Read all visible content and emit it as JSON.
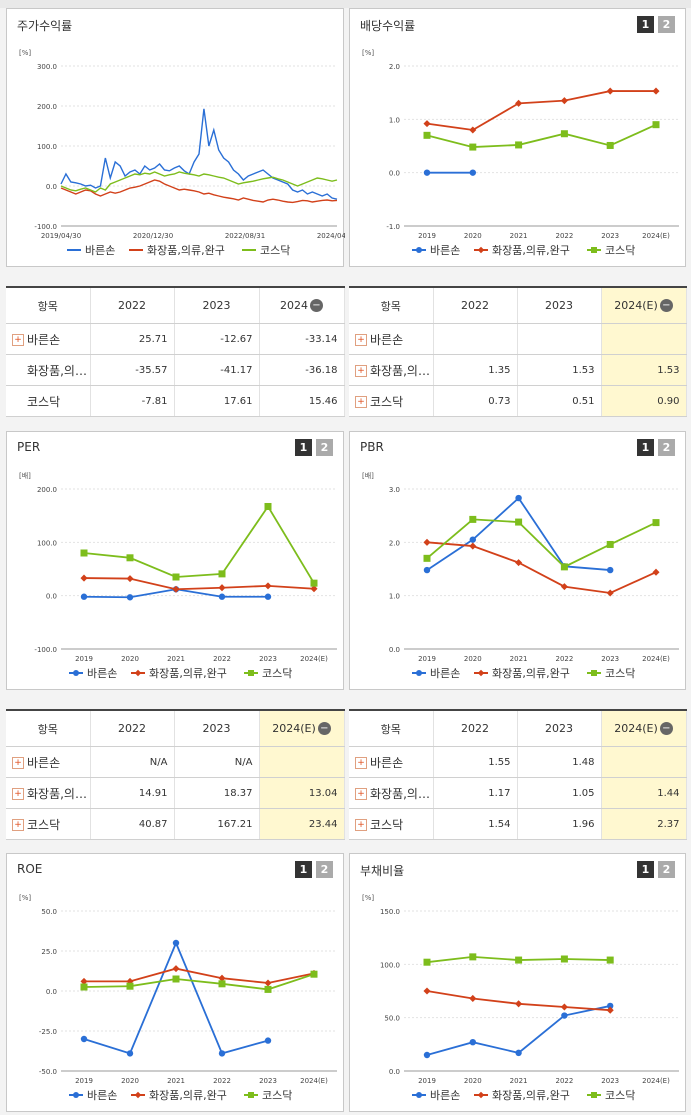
{
  "colors": {
    "bareunson": "#2a6fd6",
    "cosmetics": "#d2411a",
    "kosdaq": "#7dbd1c"
  },
  "legend": [
    "바른손",
    "화장품,의류,완구",
    "코스닥"
  ],
  "buttons": {
    "b1": "1",
    "b2": "2"
  },
  "panels": {
    "stock": {
      "title": "주가수익률"
    },
    "dividend": {
      "title": "배당수익률"
    },
    "per": {
      "title": "PER"
    },
    "pbr": {
      "title": "PBR"
    },
    "roe": {
      "title": "ROE"
    },
    "debt": {
      "title": "부채비율"
    }
  },
  "tables": {
    "stock": {
      "head": [
        "항목",
        "2022",
        "2023",
        "2024"
      ],
      "rows": [
        {
          "name": "바른손",
          "plus": true,
          "v": [
            "25.71",
            "-12.67",
            "-33.14"
          ]
        },
        {
          "name": "화장품,의…",
          "plus": false,
          "v": [
            "-35.57",
            "-41.17",
            "-36.18"
          ]
        },
        {
          "name": "코스닥",
          "plus": false,
          "v": [
            "-7.81",
            "17.61",
            "15.46"
          ]
        }
      ]
    },
    "dividend": {
      "head": [
        "항목",
        "2022",
        "2023",
        "2024(E)"
      ],
      "rows": [
        {
          "name": "바른손",
          "plus": true,
          "v": [
            "",
            "",
            ""
          ]
        },
        {
          "name": "화장품,의…",
          "plus": true,
          "v": [
            "1.35",
            "1.53",
            "1.53"
          ]
        },
        {
          "name": "코스닥",
          "plus": true,
          "v": [
            "0.73",
            "0.51",
            "0.90"
          ]
        }
      ]
    },
    "per": {
      "head": [
        "항목",
        "2022",
        "2023",
        "2024(E)"
      ],
      "rows": [
        {
          "name": "바른손",
          "plus": true,
          "v": [
            "N/A",
            "N/A",
            ""
          ]
        },
        {
          "name": "화장품,의…",
          "plus": true,
          "v": [
            "14.91",
            "18.37",
            "13.04"
          ]
        },
        {
          "name": "코스닥",
          "plus": true,
          "v": [
            "40.87",
            "167.21",
            "23.44"
          ]
        }
      ]
    },
    "pbr": {
      "head": [
        "항목",
        "2022",
        "2023",
        "2024(E)"
      ],
      "rows": [
        {
          "name": "바른손",
          "plus": true,
          "v": [
            "1.55",
            "1.48",
            ""
          ]
        },
        {
          "name": "화장품,의…",
          "plus": true,
          "v": [
            "1.17",
            "1.05",
            "1.44"
          ]
        },
        {
          "name": "코스닥",
          "plus": true,
          "v": [
            "1.54",
            "1.96",
            "2.37"
          ]
        }
      ]
    }
  },
  "chart_data": [
    {
      "id": "stock",
      "type": "line",
      "ylabel": "[%]",
      "ylim": [
        -100,
        300
      ],
      "yticks": [
        "300.0",
        "200.0",
        "100.0",
        "0.0",
        "-100.0"
      ],
      "xticks": [
        "2019/04/30",
        "2020/12/30",
        "2022/08/31",
        "2024/04/30"
      ],
      "series": [
        {
          "name": "바른손",
          "values": [
            5,
            30,
            10,
            8,
            5,
            0,
            2,
            -5,
            0,
            70,
            20,
            60,
            50,
            25,
            35,
            40,
            30,
            50,
            40,
            45,
            55,
            40,
            38,
            45,
            50,
            38,
            30,
            60,
            80,
            193,
            100,
            140,
            90,
            70,
            60,
            40,
            30,
            15,
            25,
            30,
            35,
            40,
            30,
            20,
            15,
            10,
            5,
            -10,
            -15,
            -10,
            -20,
            -15,
            -20,
            -25,
            -20,
            -30,
            -33
          ]
        },
        {
          "name": "화장품,의류,완구",
          "values": [
            -5,
            -10,
            -15,
            -20,
            -15,
            -10,
            -12,
            -20,
            -25,
            -20,
            -15,
            -18,
            -15,
            -10,
            -5,
            -3,
            0,
            5,
            10,
            15,
            12,
            5,
            0,
            -5,
            -10,
            -8,
            -10,
            -12,
            -15,
            -20,
            -18,
            -22,
            -25,
            -28,
            -30,
            -32,
            -35,
            -30,
            -33,
            -36,
            -38,
            -40,
            -35,
            -33,
            -35,
            -38,
            -40,
            -41,
            -39,
            -36,
            -37,
            -40,
            -38,
            -36,
            -35,
            -37,
            -36
          ]
        },
        {
          "name": "코스닥",
          "values": [
            0,
            -5,
            -10,
            -12,
            -8,
            -5,
            -10,
            -15,
            -5,
            -10,
            5,
            10,
            15,
            20,
            25,
            30,
            28,
            32,
            30,
            35,
            30,
            25,
            28,
            30,
            35,
            32,
            30,
            28,
            25,
            30,
            28,
            25,
            22,
            20,
            15,
            10,
            5,
            8,
            10,
            12,
            15,
            18,
            20,
            22,
            18,
            15,
            10,
            5,
            0,
            5,
            10,
            15,
            20,
            18,
            15,
            12,
            15
          ]
        }
      ]
    },
    {
      "id": "dividend",
      "type": "line",
      "ylabel": "[%]",
      "ylim": [
        -1,
        2
      ],
      "yticks": [
        "2.0",
        "1.0",
        "0.0",
        "-1.0"
      ],
      "categories": [
        "2019",
        "2020",
        "2021",
        "2022",
        "2023",
        "2024(E)"
      ],
      "series": [
        {
          "name": "바른손",
          "values": [
            0,
            0,
            null,
            null,
            null,
            null
          ]
        },
        {
          "name": "화장품,의류,완구",
          "values": [
            0.92,
            0.8,
            1.3,
            1.35,
            1.53,
            1.53
          ]
        },
        {
          "name": "코스닥",
          "values": [
            0.7,
            0.48,
            0.52,
            0.73,
            0.51,
            0.9
          ]
        }
      ]
    },
    {
      "id": "per",
      "type": "line",
      "ylabel": "[배]",
      "ylim": [
        -100,
        200
      ],
      "yticks": [
        "200.0",
        "100.0",
        "0.0",
        "-100.0"
      ],
      "categories": [
        "2019",
        "2020",
        "2021",
        "2022",
        "2023",
        "2024(E)"
      ],
      "series": [
        {
          "name": "바른손",
          "values": [
            -2,
            -3,
            12,
            -2,
            -2,
            null
          ]
        },
        {
          "name": "화장품,의류,완구",
          "values": [
            33,
            32,
            12,
            14.91,
            18.37,
            13.04
          ]
        },
        {
          "name": "코스닥",
          "values": [
            80,
            71,
            35,
            40.87,
            167.21,
            23.44
          ]
        }
      ]
    },
    {
      "id": "pbr",
      "type": "line",
      "ylabel": "[배]",
      "ylim": [
        0,
        3
      ],
      "yticks": [
        "3.0",
        "2.0",
        "1.0",
        "0.0"
      ],
      "categories": [
        "2019",
        "2020",
        "2021",
        "2022",
        "2023",
        "2024(E)"
      ],
      "series": [
        {
          "name": "바른손",
          "values": [
            1.48,
            2.05,
            2.83,
            1.55,
            1.48,
            null
          ]
        },
        {
          "name": "화장품,의류,완구",
          "values": [
            2.0,
            1.93,
            1.62,
            1.17,
            1.05,
            1.44
          ]
        },
        {
          "name": "코스닥",
          "values": [
            1.7,
            2.43,
            2.38,
            1.54,
            1.96,
            2.37
          ]
        }
      ]
    },
    {
      "id": "roe",
      "type": "line",
      "ylabel": "[%]",
      "ylim": [
        -50,
        50
      ],
      "yticks": [
        "50.0",
        "25.0",
        "0.0",
        "-25.0",
        "-50.0"
      ],
      "categories": [
        "2019",
        "2020",
        "2021",
        "2022",
        "2023",
        "2024(E)"
      ],
      "series": [
        {
          "name": "바른손",
          "values": [
            -30,
            -39,
            30,
            -39,
            -31,
            null
          ]
        },
        {
          "name": "화장품,의류,완구",
          "values": [
            6,
            6,
            14,
            8,
            5,
            11
          ]
        },
        {
          "name": "코스닥",
          "values": [
            2.5,
            3,
            7.5,
            4.5,
            1,
            10.5
          ]
        }
      ]
    },
    {
      "id": "debt",
      "type": "line",
      "ylabel": "[%]",
      "ylim": [
        0,
        150
      ],
      "yticks": [
        "150.0",
        "100.0",
        "50.0",
        "0.0"
      ],
      "categories": [
        "2019",
        "2020",
        "2021",
        "2022",
        "2023",
        "2024(E)"
      ],
      "series": [
        {
          "name": "바른손",
          "values": [
            15,
            27,
            17,
            52,
            61,
            null
          ]
        },
        {
          "name": "화장품,의류,완구",
          "values": [
            75,
            68,
            63,
            60,
            57,
            null
          ]
        },
        {
          "name": "코스닥",
          "values": [
            102,
            107,
            104,
            105,
            104,
            null
          ]
        }
      ]
    }
  ]
}
